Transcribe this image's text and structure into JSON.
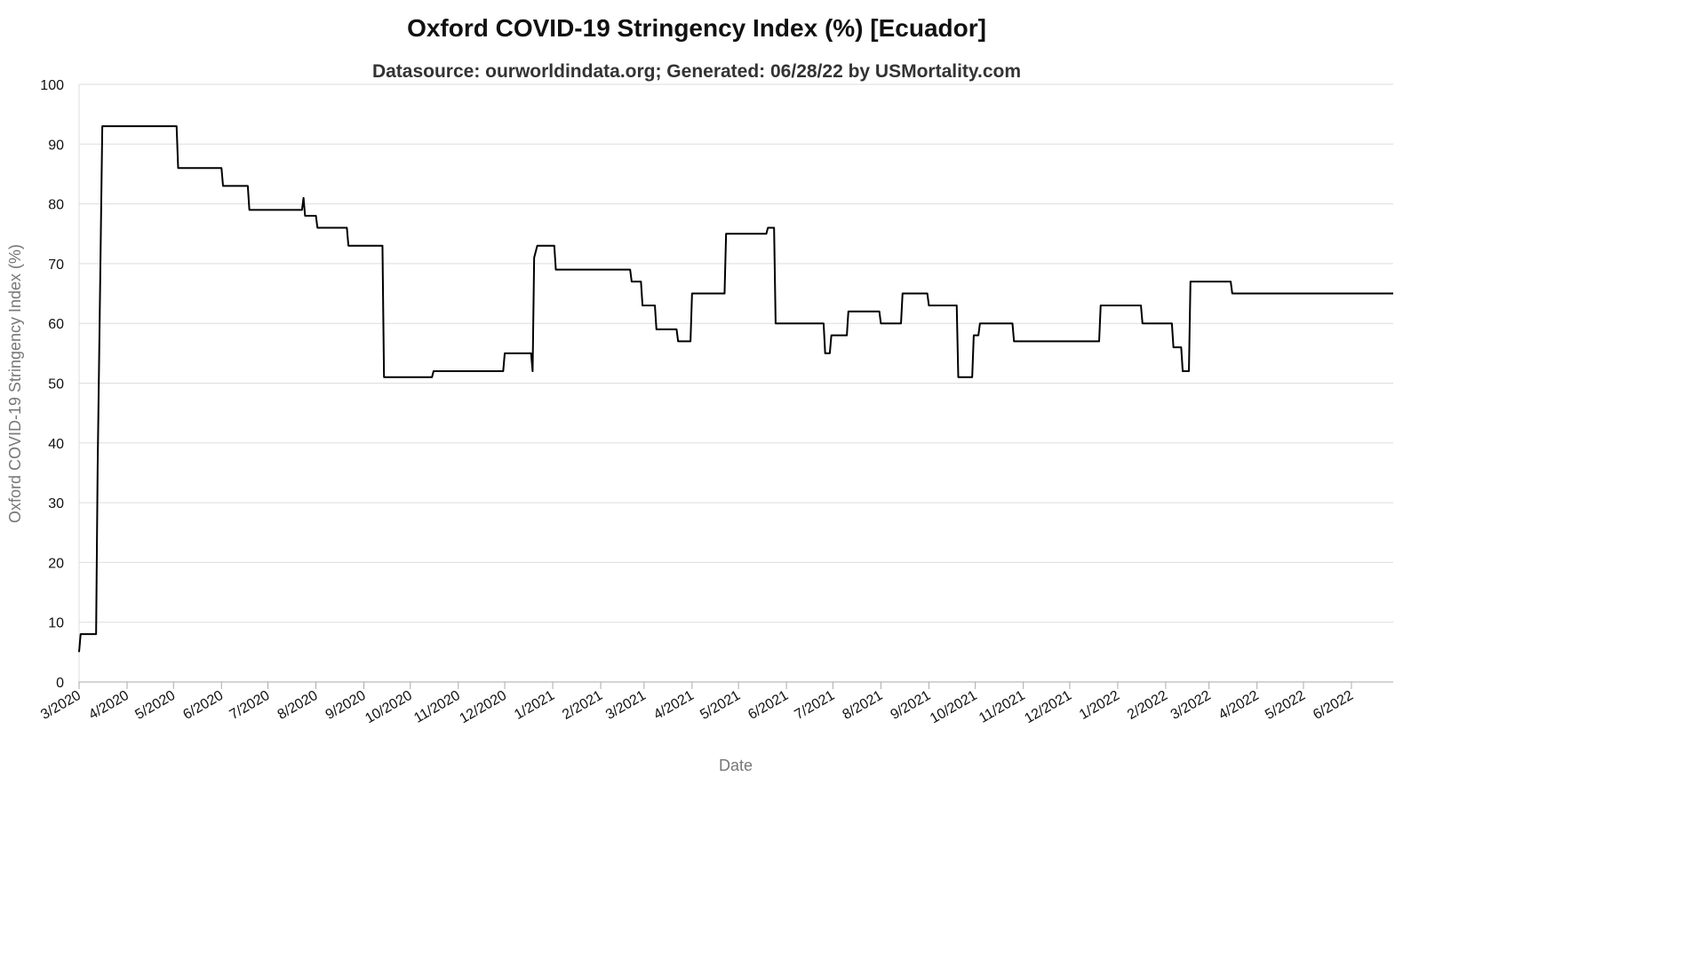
{
  "chart_data": {
    "type": "line",
    "title": "Oxford COVID-19 Stringency Index (%) [Ecuador]",
    "subtitle": "Datasource: ourworldindata.org; Generated: 06/28/22 by USMortality.com",
    "xlabel": "Date",
    "ylabel": "Oxford COVID-19 Stringency Index (%)",
    "ylim": [
      0,
      100
    ],
    "y_ticks": [
      0,
      10,
      20,
      30,
      40,
      50,
      60,
      70,
      80,
      90,
      100
    ],
    "x_ticks": [
      {
        "date": "2020-03-01",
        "label": "3/2020"
      },
      {
        "date": "2020-04-01",
        "label": "4/2020"
      },
      {
        "date": "2020-05-01",
        "label": "5/2020"
      },
      {
        "date": "2020-06-01",
        "label": "6/2020"
      },
      {
        "date": "2020-07-01",
        "label": "7/2020"
      },
      {
        "date": "2020-08-01",
        "label": "8/2020"
      },
      {
        "date": "2020-09-01",
        "label": "9/2020"
      },
      {
        "date": "2020-10-01",
        "label": "10/2020"
      },
      {
        "date": "2020-11-01",
        "label": "11/2020"
      },
      {
        "date": "2020-12-01",
        "label": "12/2020"
      },
      {
        "date": "2021-01-01",
        "label": "1/2021"
      },
      {
        "date": "2021-02-01",
        "label": "2/2021"
      },
      {
        "date": "2021-03-01",
        "label": "3/2021"
      },
      {
        "date": "2021-04-01",
        "label": "4/2021"
      },
      {
        "date": "2021-05-01",
        "label": "5/2021"
      },
      {
        "date": "2021-06-01",
        "label": "6/2021"
      },
      {
        "date": "2021-07-01",
        "label": "7/2021"
      },
      {
        "date": "2021-08-01",
        "label": "8/2021"
      },
      {
        "date": "2021-09-01",
        "label": "9/2021"
      },
      {
        "date": "2021-10-01",
        "label": "10/2021"
      },
      {
        "date": "2021-11-01",
        "label": "11/2021"
      },
      {
        "date": "2021-12-01",
        "label": "12/2021"
      },
      {
        "date": "2022-01-01",
        "label": "1/2022"
      },
      {
        "date": "2022-02-01",
        "label": "2/2022"
      },
      {
        "date": "2022-03-01",
        "label": "3/2022"
      },
      {
        "date": "2022-04-01",
        "label": "4/2022"
      },
      {
        "date": "2022-05-01",
        "label": "5/2022"
      },
      {
        "date": "2022-06-01",
        "label": "6/2022"
      }
    ],
    "x_range": [
      "2020-03-01",
      "2022-06-28"
    ],
    "grid": true,
    "series": [
      {
        "color": "#000000",
        "points": [
          {
            "date": "2020-03-01",
            "value": 5
          },
          {
            "date": "2020-03-02",
            "value": 8
          },
          {
            "date": "2020-03-12",
            "value": 8
          },
          {
            "date": "2020-03-13",
            "value": 36
          },
          {
            "date": "2020-03-14",
            "value": 55
          },
          {
            "date": "2020-03-16",
            "value": 93
          },
          {
            "date": "2020-05-03",
            "value": 93
          },
          {
            "date": "2020-05-04",
            "value": 86
          },
          {
            "date": "2020-06-01",
            "value": 86
          },
          {
            "date": "2020-06-02",
            "value": 83
          },
          {
            "date": "2020-06-18",
            "value": 83
          },
          {
            "date": "2020-06-19",
            "value": 79
          },
          {
            "date": "2020-07-23",
            "value": 79
          },
          {
            "date": "2020-07-24",
            "value": 81
          },
          {
            "date": "2020-07-25",
            "value": 78
          },
          {
            "date": "2020-08-01",
            "value": 78
          },
          {
            "date": "2020-08-02",
            "value": 76
          },
          {
            "date": "2020-08-21",
            "value": 76
          },
          {
            "date": "2020-08-22",
            "value": 73
          },
          {
            "date": "2020-09-13",
            "value": 73
          },
          {
            "date": "2020-09-14",
            "value": 51
          },
          {
            "date": "2020-10-15",
            "value": 51
          },
          {
            "date": "2020-10-16",
            "value": 52
          },
          {
            "date": "2020-11-30",
            "value": 52
          },
          {
            "date": "2020-12-01",
            "value": 55
          },
          {
            "date": "2020-12-18",
            "value": 55
          },
          {
            "date": "2020-12-19",
            "value": 52
          },
          {
            "date": "2020-12-20",
            "value": 71
          },
          {
            "date": "2020-12-22",
            "value": 73
          },
          {
            "date": "2021-01-02",
            "value": 73
          },
          {
            "date": "2021-01-03",
            "value": 69
          },
          {
            "date": "2021-02-20",
            "value": 69
          },
          {
            "date": "2021-02-21",
            "value": 67
          },
          {
            "date": "2021-02-27",
            "value": 67
          },
          {
            "date": "2021-02-28",
            "value": 63
          },
          {
            "date": "2021-03-08",
            "value": 63
          },
          {
            "date": "2021-03-09",
            "value": 59
          },
          {
            "date": "2021-03-22",
            "value": 59
          },
          {
            "date": "2021-03-23",
            "value": 57
          },
          {
            "date": "2021-03-31",
            "value": 57
          },
          {
            "date": "2021-04-01",
            "value": 65
          },
          {
            "date": "2021-04-22",
            "value": 65
          },
          {
            "date": "2021-04-23",
            "value": 75
          },
          {
            "date": "2021-05-19",
            "value": 75
          },
          {
            "date": "2021-05-20",
            "value": 76
          },
          {
            "date": "2021-05-24",
            "value": 76
          },
          {
            "date": "2021-05-25",
            "value": 60
          },
          {
            "date": "2021-06-25",
            "value": 60
          },
          {
            "date": "2021-06-26",
            "value": 55
          },
          {
            "date": "2021-06-29",
            "value": 55
          },
          {
            "date": "2021-06-30",
            "value": 58
          },
          {
            "date": "2021-07-10",
            "value": 58
          },
          {
            "date": "2021-07-11",
            "value": 62
          },
          {
            "date": "2021-07-31",
            "value": 62
          },
          {
            "date": "2021-08-01",
            "value": 60
          },
          {
            "date": "2021-08-14",
            "value": 60
          },
          {
            "date": "2021-08-15",
            "value": 65
          },
          {
            "date": "2021-08-31",
            "value": 65
          },
          {
            "date": "2021-09-01",
            "value": 63
          },
          {
            "date": "2021-09-19",
            "value": 63
          },
          {
            "date": "2021-09-20",
            "value": 51
          },
          {
            "date": "2021-09-29",
            "value": 51
          },
          {
            "date": "2021-09-30",
            "value": 58
          },
          {
            "date": "2021-10-03",
            "value": 58
          },
          {
            "date": "2021-10-04",
            "value": 60
          },
          {
            "date": "2021-10-25",
            "value": 60
          },
          {
            "date": "2021-10-26",
            "value": 57
          },
          {
            "date": "2021-12-20",
            "value": 57
          },
          {
            "date": "2021-12-21",
            "value": 63
          },
          {
            "date": "2022-01-16",
            "value": 63
          },
          {
            "date": "2022-01-17",
            "value": 60
          },
          {
            "date": "2022-02-05",
            "value": 60
          },
          {
            "date": "2022-02-06",
            "value": 56
          },
          {
            "date": "2022-02-11",
            "value": 56
          },
          {
            "date": "2022-02-12",
            "value": 52
          },
          {
            "date": "2022-02-16",
            "value": 52
          },
          {
            "date": "2022-02-17",
            "value": 67
          },
          {
            "date": "2022-03-15",
            "value": 67
          },
          {
            "date": "2022-03-16",
            "value": 65
          },
          {
            "date": "2022-06-28",
            "value": 65
          }
        ]
      }
    ]
  }
}
